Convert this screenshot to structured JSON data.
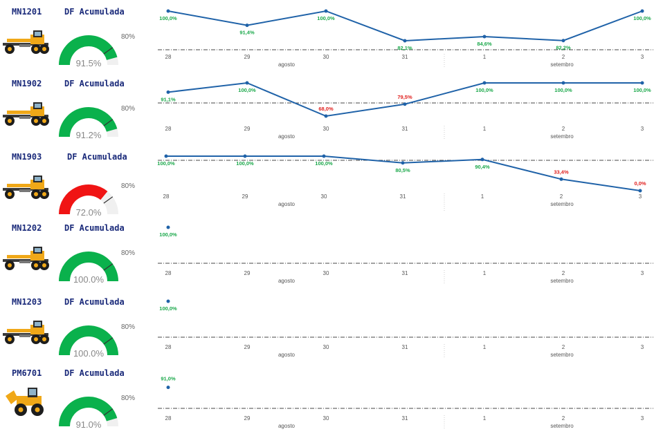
{
  "colors": {
    "line": "#1f62a8",
    "good": "#1aa84a",
    "bad": "#e0201e",
    "gauge_good": "#0ab14c",
    "gauge_bad": "#f01414",
    "gauge_bg": "#f0f0f0",
    "ref": "#444444",
    "title": "#1a2a7a"
  },
  "x_categories": [
    "28",
    "29",
    "30",
    "31",
    "1",
    "2",
    "3"
  ],
  "month_labels": {
    "first": "agosto",
    "second": "setembro"
  },
  "df_label": "DF Acumulada",
  "machines": [
    {
      "code": "MN1201",
      "machine_type": "grader-icon",
      "gauge_value": 91.5,
      "gauge_label": "91.5%",
      "target_label": "80%"
    },
    {
      "code": "MN1902",
      "machine_type": "grader-icon",
      "gauge_value": 91.2,
      "gauge_label": "91.2%",
      "target_label": "80%"
    },
    {
      "code": "MN1903",
      "machine_type": "grader-icon",
      "gauge_value": 72.0,
      "gauge_label": "72.0%",
      "target_label": "80%"
    },
    {
      "code": "MN1202",
      "machine_type": "grader-icon",
      "gauge_value": 100.0,
      "gauge_label": "100.0%",
      "target_label": "80%"
    },
    {
      "code": "MN1203",
      "machine_type": "grader-icon",
      "gauge_value": 100.0,
      "gauge_label": "100.0%",
      "target_label": "80%"
    },
    {
      "code": "PM6701",
      "machine_type": "wheel-loader-icon",
      "gauge_value": 91.0,
      "gauge_label": "91.0%",
      "target_label": "80%"
    }
  ],
  "chart_data": [
    {
      "type": "line",
      "machine": "MN1201",
      "categories": [
        "28",
        "29",
        "30",
        "31",
        "1",
        "2",
        "3"
      ],
      "values": [
        100.0,
        91.4,
        100.0,
        82.1,
        84.6,
        82.2,
        100.0
      ],
      "labels": [
        "100,0%",
        "91,4%",
        "100,0%",
        "82,1%",
        "84,6%",
        "82,2%",
        "100,0%"
      ],
      "reference": 80,
      "ylim": [
        80,
        100
      ]
    },
    {
      "type": "line",
      "machine": "MN1902",
      "categories": [
        "28",
        "29",
        "30",
        "31",
        "1",
        "2",
        "3"
      ],
      "values": [
        91.1,
        100.0,
        68.0,
        79.5,
        100.0,
        100.0,
        100.0
      ],
      "labels": [
        "91,1%",
        "100,0%",
        "68,0%",
        "79,5%",
        "100,0%",
        "100,0%",
        "100,0%"
      ],
      "reference": 80,
      "ylim": [
        68,
        100
      ]
    },
    {
      "type": "line",
      "machine": "MN1903",
      "categories": [
        "28",
        "29",
        "30",
        "31",
        "1",
        "2",
        "3"
      ],
      "values": [
        100.0,
        100.0,
        100.0,
        80.5,
        90.4,
        33.4,
        0.0
      ],
      "labels": [
        "100,0%",
        "100,0%",
        "100,0%",
        "80,5%",
        "90,4%",
        "33,4%",
        "0,0%"
      ],
      "reference": 80,
      "ylim": [
        0,
        100
      ]
    },
    {
      "type": "line",
      "machine": "MN1202",
      "categories": [
        "28",
        "29",
        "30",
        "31",
        "1",
        "2",
        "3"
      ],
      "values": [
        100.0,
        null,
        null,
        null,
        null,
        null,
        null
      ],
      "labels": [
        "100,0%",
        "",
        "",
        "",
        "",
        "",
        ""
      ],
      "reference": 80,
      "ylim": [
        80,
        100
      ]
    },
    {
      "type": "line",
      "machine": "MN1203",
      "categories": [
        "28",
        "29",
        "30",
        "31",
        "1",
        "2",
        "3"
      ],
      "values": [
        100.0,
        null,
        null,
        null,
        null,
        null,
        null
      ],
      "labels": [
        "100,0%",
        "",
        "",
        "",
        "",
        "",
        ""
      ],
      "reference": 80,
      "ylim": [
        80,
        100
      ]
    },
    {
      "type": "line",
      "machine": "PM6701",
      "categories": [
        "28",
        "29",
        "30",
        "31",
        "1",
        "2",
        "3"
      ],
      "values": [
        91.0,
        null,
        null,
        null,
        null,
        null,
        null
      ],
      "labels": [
        "91,0%",
        "",
        "",
        "",
        "",
        "",
        ""
      ],
      "reference": 80,
      "ylim": [
        80,
        100
      ]
    }
  ]
}
